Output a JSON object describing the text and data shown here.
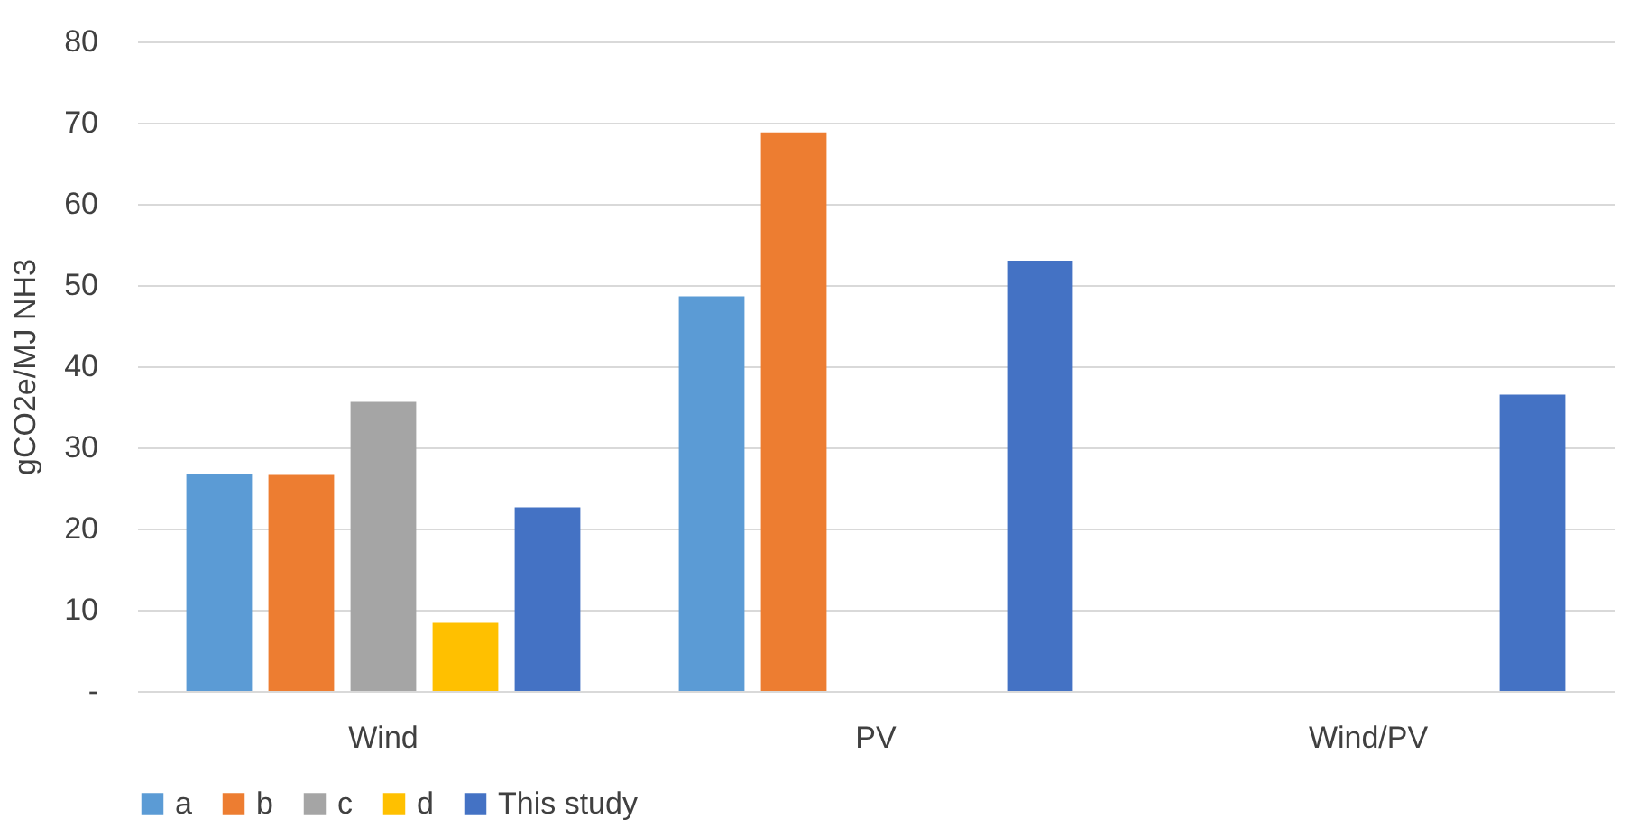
{
  "chart_data": {
    "type": "bar",
    "ylabel": "gCO2e/MJ NH3",
    "categories": [
      "Wind",
      "PV",
      "Wind/PV"
    ],
    "series": [
      {
        "name": "a",
        "color": "#5b9bd5",
        "values": [
          26.7,
          48.6,
          null
        ]
      },
      {
        "name": "b",
        "color": "#ed7d31",
        "values": [
          26.6,
          68.8,
          null
        ]
      },
      {
        "name": "c",
        "color": "#a5a5a5",
        "values": [
          35.6,
          null,
          null
        ]
      },
      {
        "name": "d",
        "color": "#ffc000",
        "values": [
          8.4,
          null,
          null
        ]
      },
      {
        "name": "This study",
        "color": "#4472c4",
        "values": [
          22.6,
          53.0,
          36.5
        ]
      }
    ],
    "ylim": [
      0,
      80
    ],
    "yticks": [
      {
        "value": 0,
        "label": "-"
      },
      10,
      20,
      30,
      40,
      50,
      60,
      70,
      80
    ],
    "grid": "y",
    "legend": "bottom"
  }
}
